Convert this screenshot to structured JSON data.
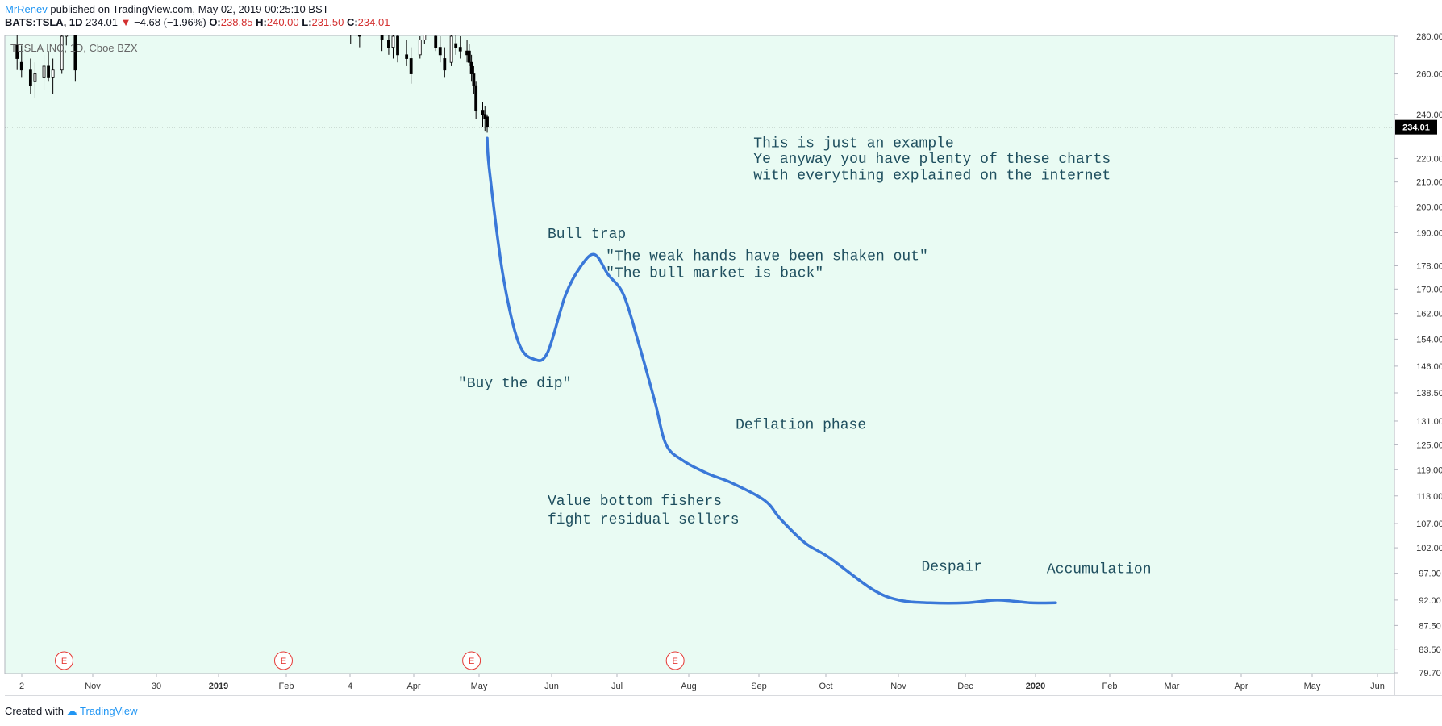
{
  "header": {
    "author": "MrRenev",
    "published_text": "published on TradingView.com, May 02, 2019 00:25:10 BST",
    "symbol": "BATS:TSLA, 1D",
    "last": "234.01",
    "change_arrow": "▼",
    "change": "−4.68 (−1.96%)",
    "o_label": "O:",
    "o_value": "238.85",
    "h_label": "H:",
    "h_value": "240.00",
    "l_label": "L:",
    "l_value": "231.50",
    "c_label": "C:",
    "c_value": "234.01"
  },
  "legend_text": "TESLA INC, 1D, Cboe BZX",
  "footer": {
    "created_with": "Created with",
    "brand": "TradingView"
  },
  "colors": {
    "chart_bg": "#e9fbf3",
    "projection_line": "#3a78d8",
    "candle": "#000000",
    "price_tag_bg": "#000000",
    "earnings_marker": "#e53935",
    "annotation_text": "#1f4f5f"
  },
  "chart_data": {
    "type": "line",
    "y_scale": "log",
    "ylim": [
      79.7,
      280
    ],
    "y_ticks": [
      "280.00",
      "260.00",
      "240.00",
      "220.00",
      "210.00",
      "200.00",
      "190.00",
      "178.00",
      "170.00",
      "162.00",
      "154.00",
      "146.00",
      "138.50",
      "131.00",
      "125.00",
      "119.00",
      "113.00",
      "107.00",
      "102.00",
      "97.00",
      "92.00",
      "87.50",
      "83.50",
      "79.70"
    ],
    "x_tick_labels": [
      "2",
      "Nov",
      "30",
      "2019",
      "Feb",
      "4",
      "Apr",
      "May",
      "Jun",
      "Jul",
      "Aug",
      "Sep",
      "Oct",
      "Nov",
      "Dec",
      "2020",
      "Feb",
      "Mar",
      "Apr",
      "May",
      "Jun"
    ],
    "x_tick_bold": [
      "2019",
      "2020"
    ],
    "last_price_label": "234.01",
    "last_price": 234.01,
    "earnings_marker_label": "E",
    "earnings_dates": [
      "2018-10-24",
      "2019-01-30",
      "2019-04-24",
      "2019-07-24"
    ],
    "candles_note": "daily candles Oct 2018 – May 2019, mostly above 240 (partially off-screen top)",
    "candle_series": [
      {
        "date": "2018-10-03",
        "o": 275,
        "h": 282,
        "l": 262,
        "c": 268
      },
      {
        "date": "2018-10-05",
        "o": 266,
        "h": 275,
        "l": 258,
        "c": 262
      },
      {
        "date": "2018-10-09",
        "o": 262,
        "h": 268,
        "l": 250,
        "c": 254
      },
      {
        "date": "2018-10-11",
        "o": 256,
        "h": 266,
        "l": 248,
        "c": 260
      },
      {
        "date": "2018-10-15",
        "o": 258,
        "h": 270,
        "l": 252,
        "c": 264
      },
      {
        "date": "2018-10-17",
        "o": 264,
        "h": 272,
        "l": 256,
        "c": 258
      },
      {
        "date": "2018-10-19",
        "o": 258,
        "h": 268,
        "l": 250,
        "c": 262
      },
      {
        "date": "2018-10-23",
        "o": 262,
        "h": 285,
        "l": 260,
        "c": 280
      },
      {
        "date": "2018-10-25",
        "o": 280,
        "h": 300,
        "l": 275,
        "c": 295
      },
      {
        "date": "2018-10-29",
        "o": 290,
        "h": 300,
        "l": 256,
        "c": 262
      },
      {
        "date": "2019-03-01",
        "o": 290,
        "h": 295,
        "l": 276,
        "c": 282
      },
      {
        "date": "2019-03-05",
        "o": 282,
        "h": 290,
        "l": 274,
        "c": 280
      },
      {
        "date": "2019-03-15",
        "o": 282,
        "h": 290,
        "l": 272,
        "c": 278
      },
      {
        "date": "2019-03-18",
        "o": 278,
        "h": 284,
        "l": 270,
        "c": 274
      },
      {
        "date": "2019-03-20",
        "o": 274,
        "h": 284,
        "l": 268,
        "c": 280
      },
      {
        "date": "2019-03-22",
        "o": 280,
        "h": 286,
        "l": 266,
        "c": 270
      },
      {
        "date": "2019-03-26",
        "o": 270,
        "h": 278,
        "l": 264,
        "c": 268
      },
      {
        "date": "2019-03-28",
        "o": 268,
        "h": 274,
        "l": 255,
        "c": 260
      },
      {
        "date": "2019-04-01",
        "o": 270,
        "h": 280,
        "l": 268,
        "c": 278
      },
      {
        "date": "2019-04-03",
        "o": 278,
        "h": 290,
        "l": 276,
        "c": 286
      },
      {
        "date": "2019-04-08",
        "o": 280,
        "h": 285,
        "l": 272,
        "c": 274
      },
      {
        "date": "2019-04-10",
        "o": 274,
        "h": 280,
        "l": 266,
        "c": 270
      },
      {
        "date": "2019-04-12",
        "o": 268,
        "h": 274,
        "l": 258,
        "c": 262
      },
      {
        "date": "2019-04-15",
        "o": 266,
        "h": 282,
        "l": 264,
        "c": 280
      },
      {
        "date": "2019-04-17",
        "o": 276,
        "h": 282,
        "l": 270,
        "c": 274
      },
      {
        "date": "2019-04-19",
        "o": 274,
        "h": 280,
        "l": 268,
        "c": 272
      },
      {
        "date": "2019-04-22",
        "o": 272,
        "h": 278,
        "l": 266,
        "c": 270
      },
      {
        "date": "2019-04-23",
        "o": 272,
        "h": 276,
        "l": 264,
        "c": 266
      },
      {
        "date": "2019-04-24",
        "o": 266,
        "h": 270,
        "l": 256,
        "c": 260
      },
      {
        "date": "2019-04-25",
        "o": 260,
        "h": 264,
        "l": 250,
        "c": 254
      },
      {
        "date": "2019-04-26",
        "o": 254,
        "h": 256,
        "l": 238,
        "c": 242
      },
      {
        "date": "2019-04-29",
        "o": 242,
        "h": 246,
        "l": 234,
        "c": 240
      },
      {
        "date": "2019-04-30",
        "o": 240,
        "h": 244,
        "l": 232,
        "c": 238
      },
      {
        "date": "2019-05-01",
        "o": 238.85,
        "h": 240,
        "l": 231.5,
        "c": 234.01
      }
    ],
    "series": [
      {
        "x": [
          "2019-05-01",
          "2019-05-02",
          "2019-05-08",
          "2019-05-15",
          "2019-05-22",
          "2019-05-28",
          "2019-06-05",
          "2019-06-12",
          "2019-06-18",
          "2019-06-24",
          "2019-07-01",
          "2019-07-08",
          "2019-07-15",
          "2019-07-20",
          "2019-07-28",
          "2019-08-08",
          "2019-08-18",
          "2019-09-02",
          "2019-09-09",
          "2019-09-20",
          "2019-10-01",
          "2019-10-20",
          "2019-11-01",
          "2019-11-15",
          "2019-12-01",
          "2019-12-15",
          "2019-12-30",
          "2020-01-10"
        ],
        "y": [
          229,
          215,
          175,
          153,
          148,
          150,
          168,
          178,
          182,
          175,
          168,
          152,
          136,
          125,
          121,
          118,
          116,
          112,
          108,
          103,
          100,
          94,
          92,
          91.5,
          91.5,
          92,
          91.5,
          91.5
        ]
      }
    ],
    "annotations": [
      {
        "text": "This is just an example",
        "x": "2019-08-28",
        "y": 225
      },
      {
        "text": "Ye anyway you have plenty of these charts",
        "x": "2019-08-28",
        "y": 218
      },
      {
        "text": "with everything explained on the internet",
        "x": "2019-08-28",
        "y": 211
      },
      {
        "text": "Bull trap",
        "x": "2019-05-28",
        "y": 188
      },
      {
        "text": "\"The weak hands have been shaken out\"",
        "x": "2019-06-23",
        "y": 180
      },
      {
        "text": "\"The bull market is back\"",
        "x": "2019-06-23",
        "y": 174
      },
      {
        "text": "\"Buy the dip\"",
        "x": "2019-04-18",
        "y": 140
      },
      {
        "text": "Deflation phase",
        "x": "2019-08-20",
        "y": 129
      },
      {
        "text": "Value bottom fishers",
        "x": "2019-05-28",
        "y": 111
      },
      {
        "text": "fight residual sellers",
        "x": "2019-05-28",
        "y": 107
      },
      {
        "text": "Despair",
        "x": "2019-11-11",
        "y": 97.5
      },
      {
        "text": "Accumulation",
        "x": "2020-01-06",
        "y": 97
      }
    ]
  }
}
